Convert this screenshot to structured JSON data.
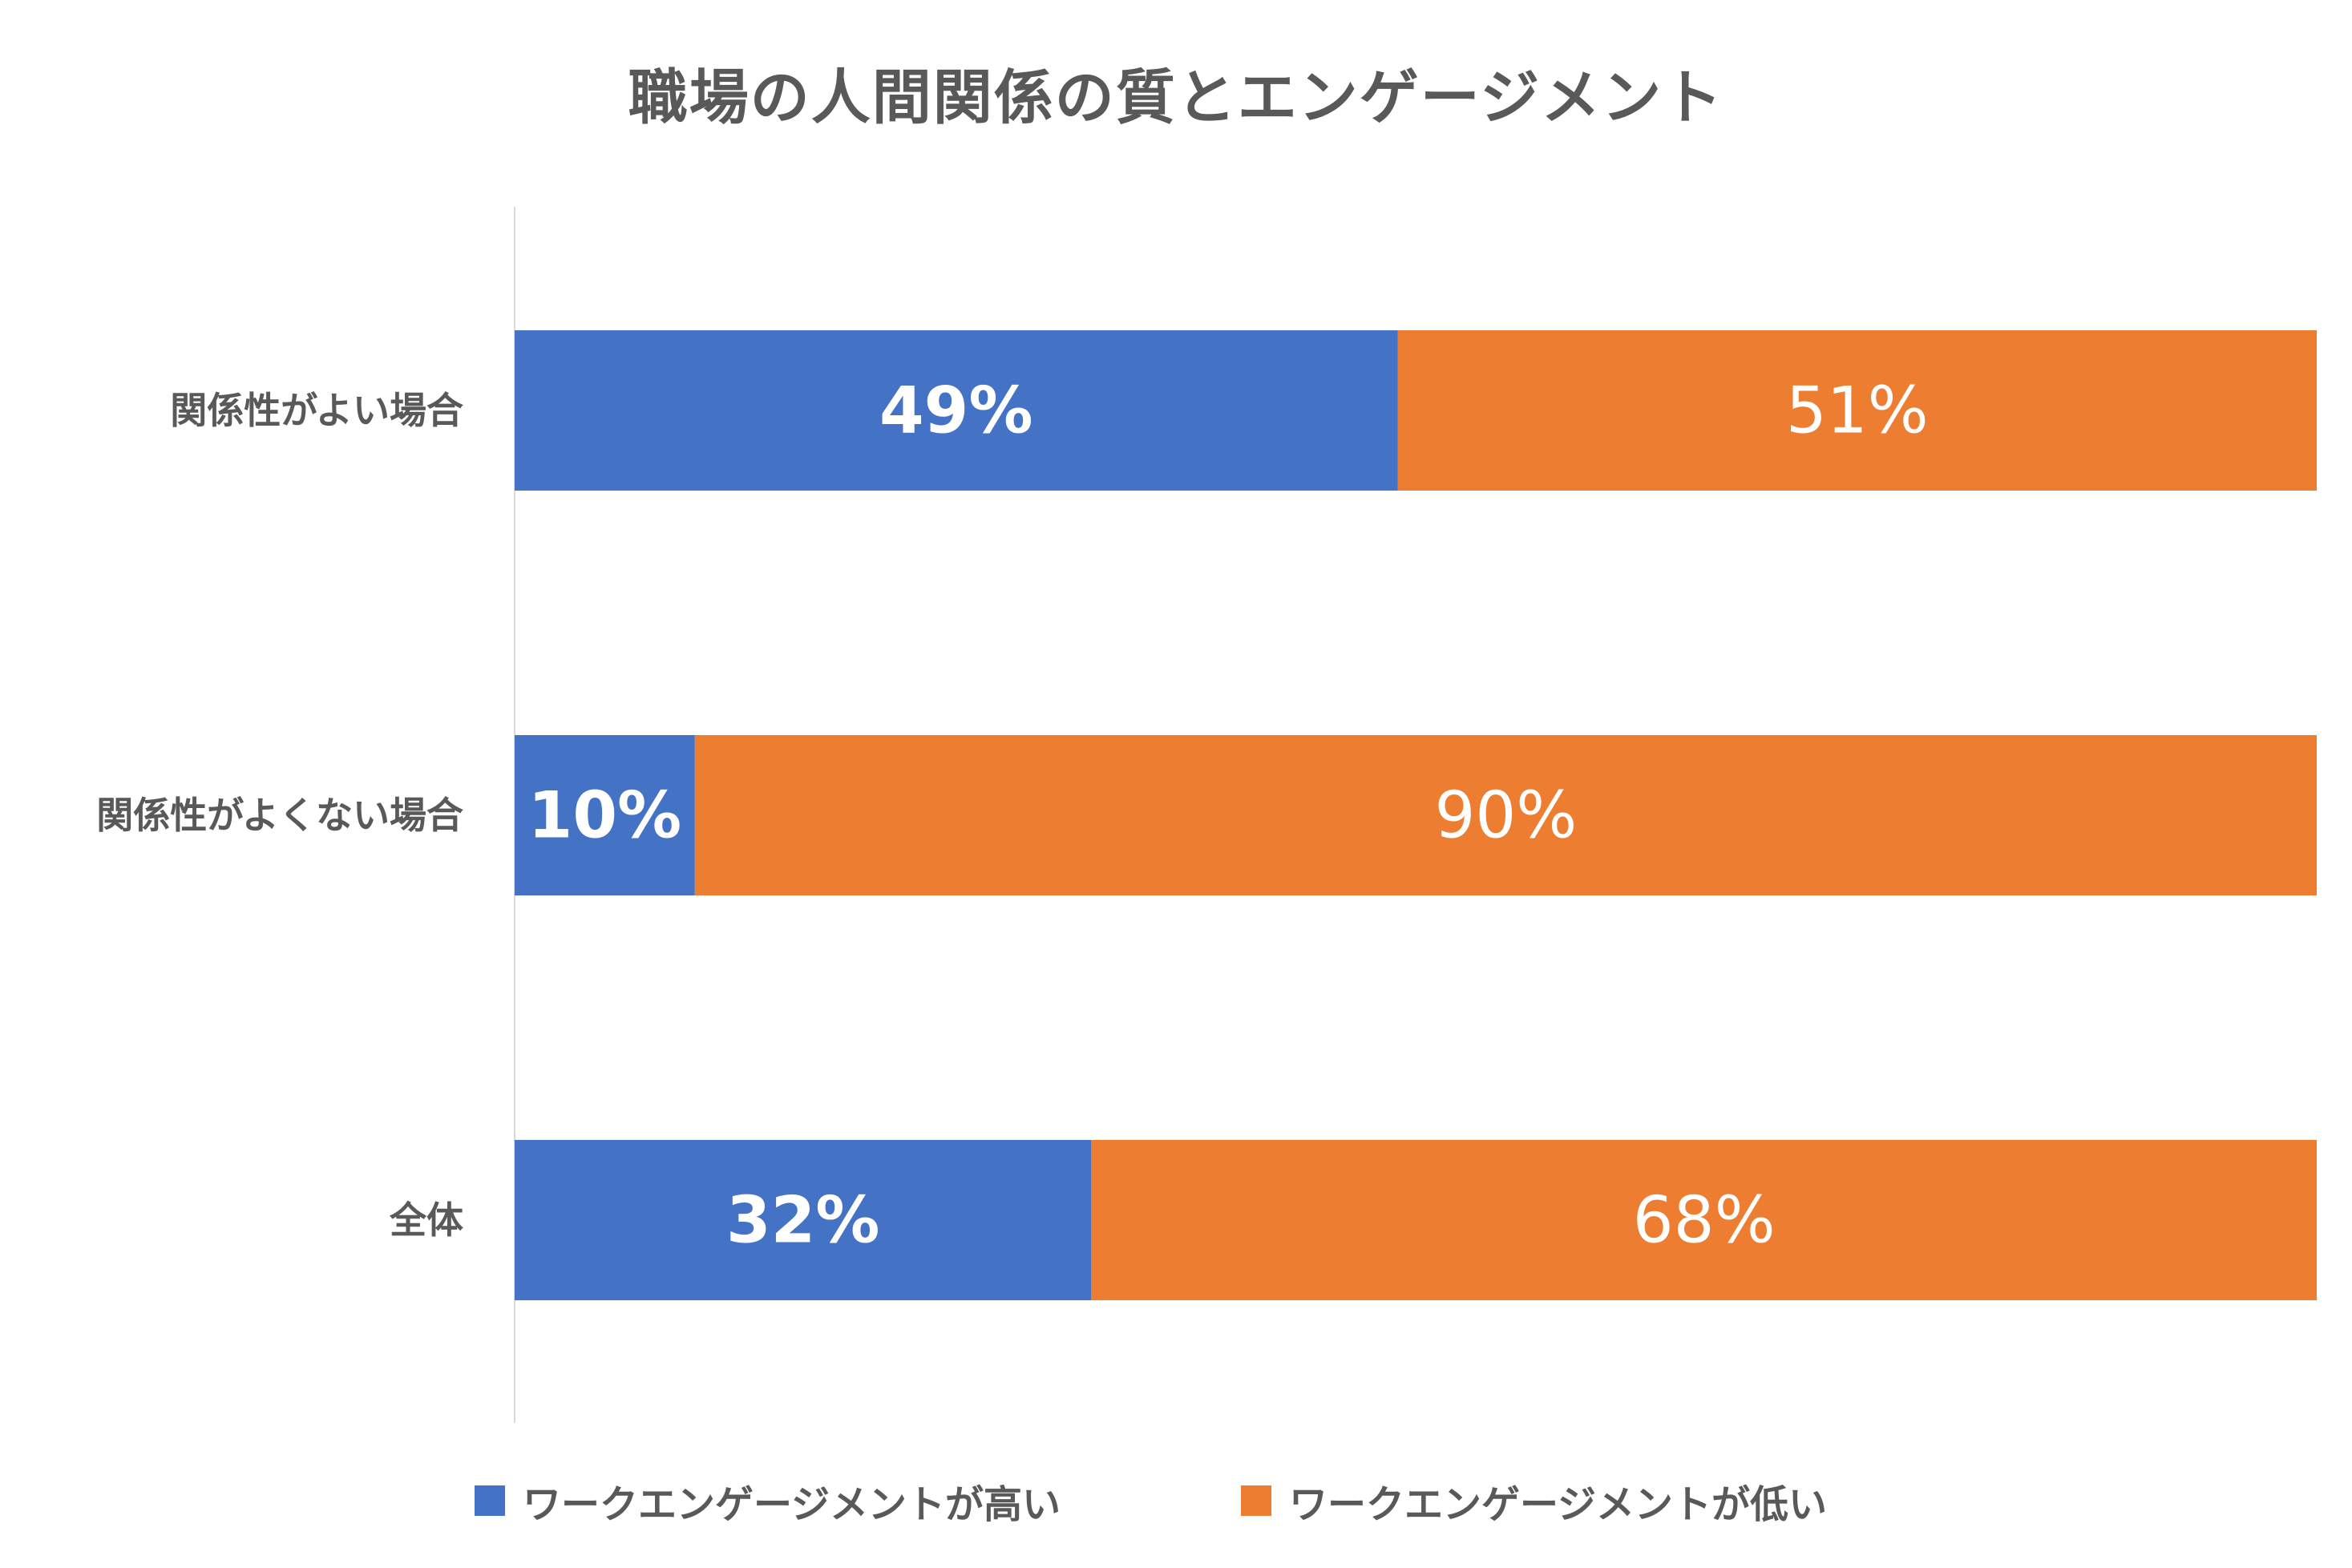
{
  "chart_data": {
    "type": "bar",
    "orientation": "horizontal",
    "stacked": true,
    "title": "職場の人間関係の質とエンゲージメント",
    "xlabel": "",
    "ylabel": "",
    "xlim": [
      0,
      100
    ],
    "grid": false,
    "legend_position": "bottom",
    "categories": [
      "関係性がよい場合",
      "関係性がよくない場合",
      "全体"
    ],
    "series": [
      {
        "name": "ワークエンゲージメントが高い",
        "color": "#4472C4",
        "values": [
          49,
          10,
          32
        ],
        "data_labels": [
          "49%",
          "10%",
          "32%"
        ],
        "label_weight": "bold"
      },
      {
        "name": "ワークエンゲージメントが低い",
        "color": "#ED7D31",
        "values": [
          51,
          90,
          68
        ],
        "data_labels": [
          "51%",
          "90%",
          "68%"
        ],
        "label_weight": "normal"
      }
    ]
  }
}
